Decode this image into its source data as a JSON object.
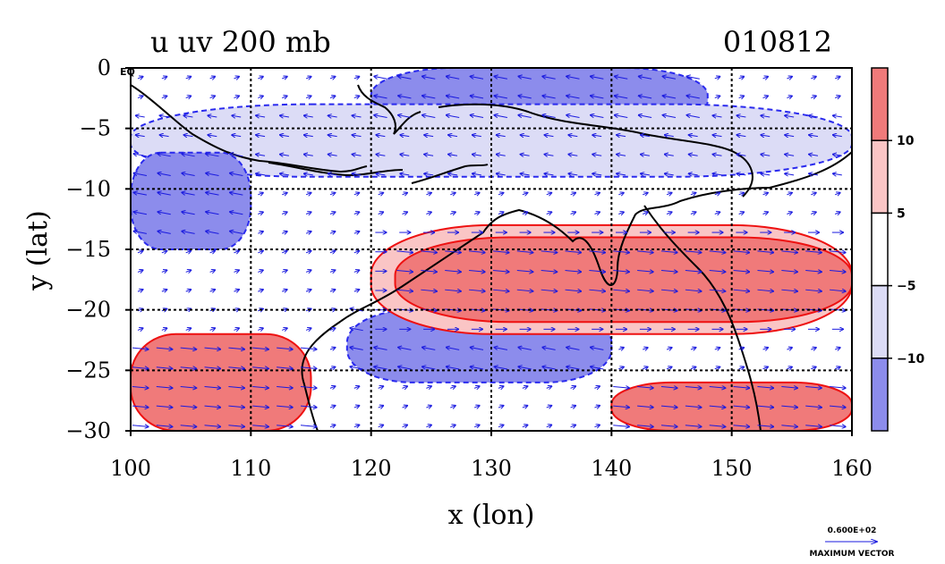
{
  "chart_data": {
    "type": "heatmap",
    "title": "u uv 200 mb",
    "date_label": "010812",
    "xlabel": "x (lon)",
    "ylabel": "y (lat)",
    "xlim": [
      100,
      160
    ],
    "ylim": [
      -30,
      0
    ],
    "x_ticks": [
      "100",
      "110",
      "120",
      "130",
      "140",
      "150",
      "160"
    ],
    "y_ticks": [
      "0",
      "−5",
      "−10",
      "−15",
      "−20",
      "−25",
      "−30"
    ],
    "grid": true,
    "colorbar": {
      "labels": [
        "10",
        "5",
        "−5",
        "−10"
      ],
      "levels": [
        {
          "range": [
            10,
            null
          ],
          "color": "#f07a7a"
        },
        {
          "range": [
            5,
            10
          ],
          "color": "#fac5c5"
        },
        {
          "range": [
            -5,
            5
          ],
          "color": "#ffffff"
        },
        {
          "range": [
            -10,
            -5
          ],
          "color": "#dcdcf6"
        },
        {
          "range": [
            null,
            -10
          ],
          "color": "#8c8cec"
        }
      ]
    },
    "reference_vector": {
      "value": "0.600E+02",
      "label": "MAXIMUM VECTOR"
    },
    "corner_label": "EQ",
    "regions": [
      {
        "level": "strong_easterly",
        "lon_range": [
          120,
          148
        ],
        "lat_range": [
          -5,
          0
        ]
      },
      {
        "level": "easterly",
        "lon_range": [
          100,
          160
        ],
        "lat_range": [
          -9,
          -3
        ]
      },
      {
        "level": "strong_easterly",
        "lon_range": [
          100,
          110
        ],
        "lat_range": [
          -15,
          -7
        ]
      },
      {
        "level": "strong_easterly",
        "lon_range": [
          118,
          140
        ],
        "lat_range": [
          -26,
          -20
        ]
      },
      {
        "level": "westerly",
        "lon_range": [
          120,
          160
        ],
        "lat_range": [
          -22,
          -13
        ]
      },
      {
        "level": "strong_westerly",
        "lon_range": [
          122,
          160
        ],
        "lat_range": [
          -21,
          -14
        ]
      },
      {
        "level": "strong_westerly",
        "lon_range": [
          100,
          115
        ],
        "lat_range": [
          -30,
          -22
        ]
      },
      {
        "level": "strong_westerly",
        "lon_range": [
          140,
          160
        ],
        "lat_range": [
          -30,
          -26
        ]
      }
    ]
  }
}
